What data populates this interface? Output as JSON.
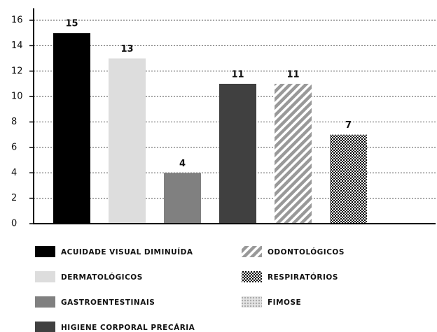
{
  "chart_data": {
    "type": "bar",
    "series": [
      {
        "name": "ACUIDADE VISUAL DIMINUÍDA",
        "color": "#000000",
        "value": 15
      },
      {
        "name": "DERMATOLÓGICOS",
        "color": "#dddddd",
        "value": 13
      },
      {
        "name": "GASTROENTESTINAIS",
        "color": "#808080",
        "value": 4
      },
      {
        "name": "HIGIENE CORPORAL PRECÁRIA",
        "color": "#404040",
        "value": 11
      },
      {
        "name": "ODONTOLÓGICOS",
        "color": "#999999",
        "pattern": "stripes",
        "value": 11
      },
      {
        "name": "RESPIRATÓRIOS",
        "color": "#000000",
        "pattern": "checker",
        "value": 7
      },
      {
        "name": "FIMOSE",
        "color": "#bbbbbb",
        "pattern": "dots",
        "value": null
      }
    ],
    "ylim": [
      0,
      16
    ],
    "yticks": [
      0,
      2,
      4,
      6,
      8,
      10,
      12,
      14,
      16
    ],
    "grid": true
  }
}
